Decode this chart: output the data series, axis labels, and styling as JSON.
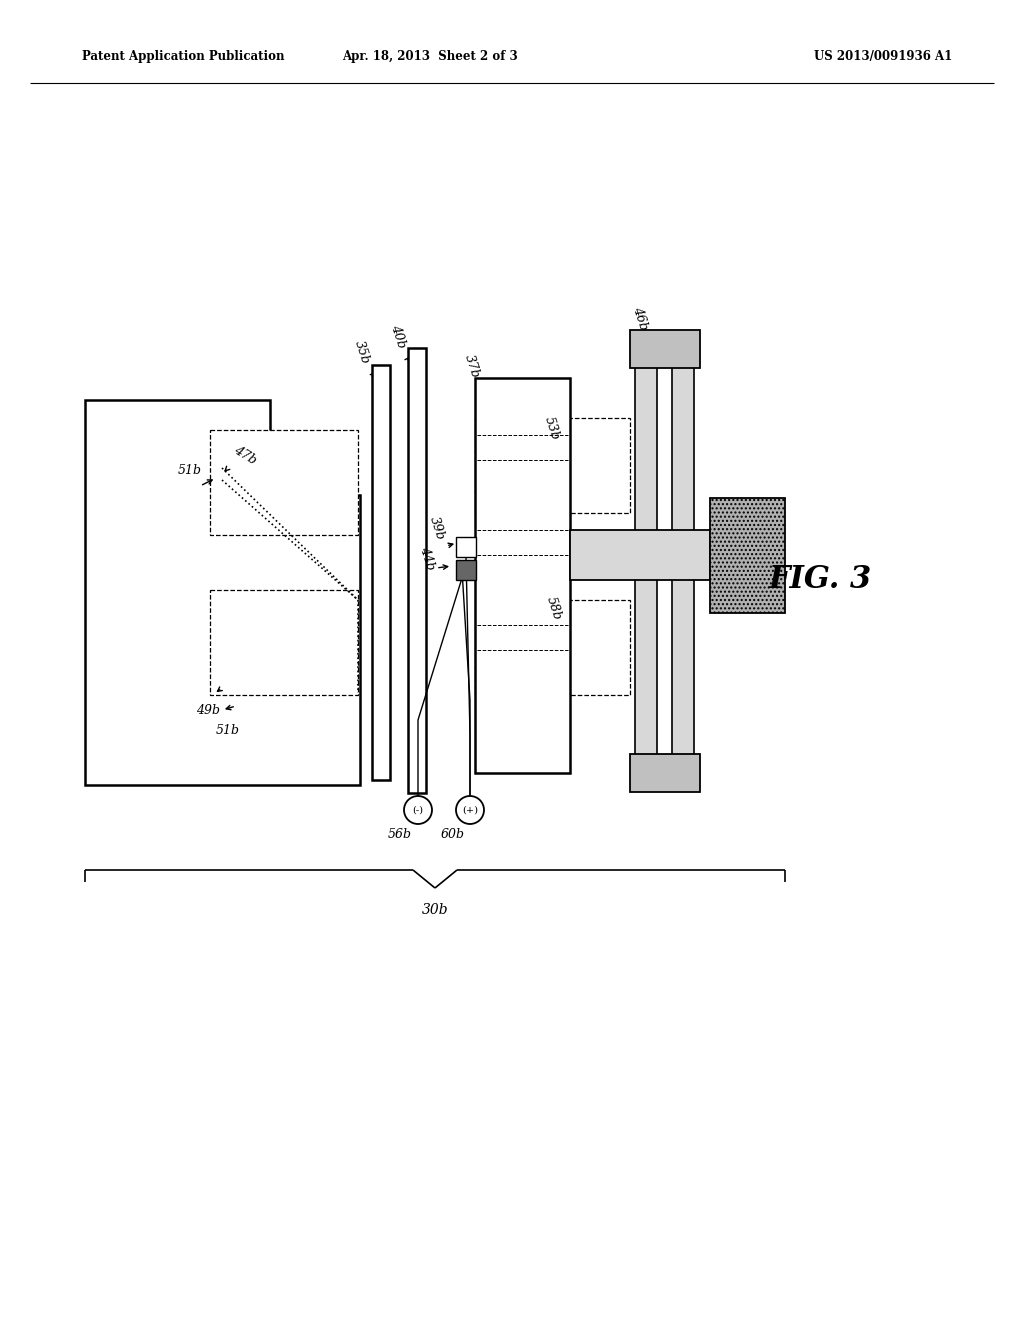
{
  "background_color": "#ffffff",
  "header_left": "Patent Application Publication",
  "header_center": "Apr. 18, 2013  Sheet 2 of 3",
  "header_right": "US 2013/0091936 A1",
  "fig_label": "FIG. 3",
  "fig_label_fontsize": 20
}
